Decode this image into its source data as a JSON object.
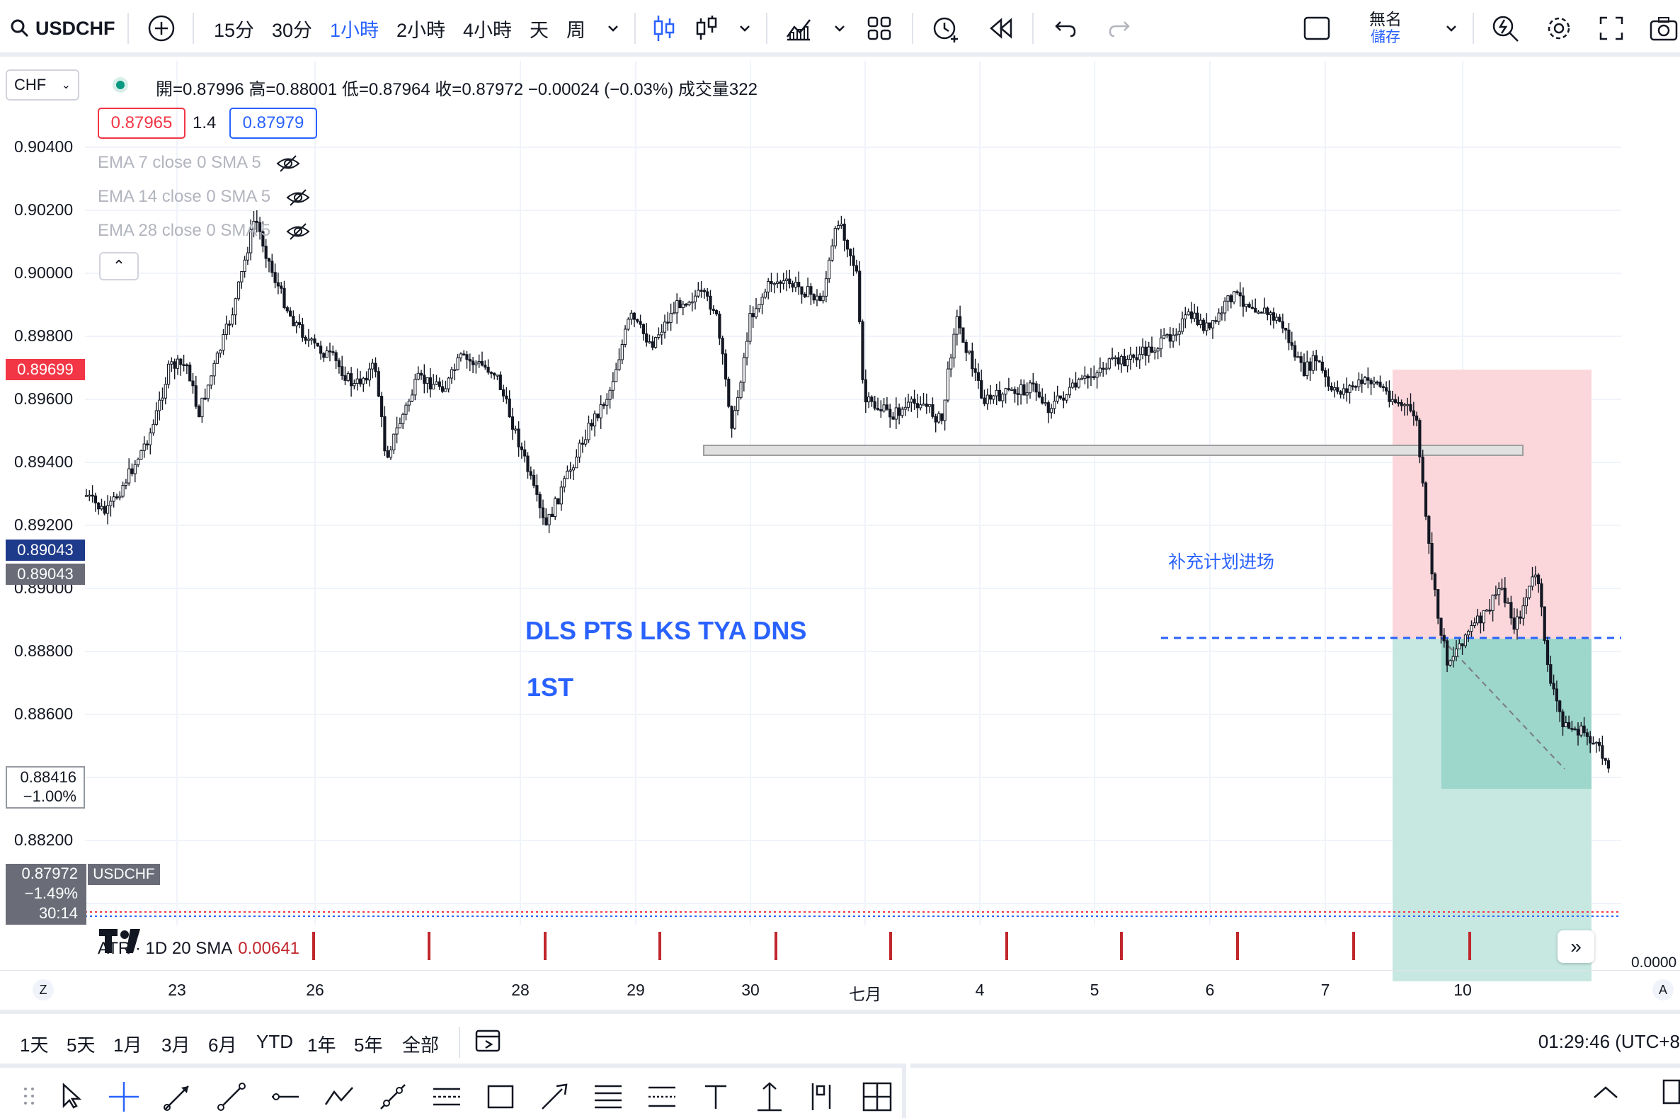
{
  "toolbar": {
    "symbol": "USDCHF",
    "intervals": [
      "15分",
      "30分",
      "1小時",
      "2小時",
      "4小時",
      "天",
      "周"
    ],
    "active_interval": "1小時",
    "layout_name": "無名",
    "layout_sub": "儲存"
  },
  "legend": {
    "currency": "CHF",
    "ohlc": "開=0.87996  高=0.88001  低=0.87964  收=0.87972  −0.00024 (−0.03%)  成交量322",
    "bid": "0.87965",
    "spread": "1.4",
    "ask": "0.87979",
    "indicators": [
      "EMA 7 close 0 SMA 5",
      "EMA 14 close 0 SMA 5",
      "EMA 28 close 0 SMA 5"
    ]
  },
  "price_axis": {
    "labels": [
      "0.90400",
      "0.90200",
      "0.90000",
      "0.89800",
      "0.89600",
      "0.89400",
      "0.89200",
      "0.89000",
      "0.88800",
      "0.88600",
      "0.88200"
    ],
    "tag_red": "0.89699",
    "tag_blue": "0.89043",
    "tag_gray": "0.89043",
    "box_price": "0.88416",
    "box_pct": "−1.00%",
    "last_price": "0.87972",
    "last_pct": "−1.49%",
    "countdown": "30:14",
    "symbol_tag": "USDCHF",
    "lower_value": "0.0000"
  },
  "annotations": {
    "text1": "DLS PTS LKS TYA DNS",
    "text2": "1ST",
    "plan_label": "补充计划进场"
  },
  "atr": {
    "label": "ATR · 1D 20 SMA",
    "value": "0.00641"
  },
  "time_axis": [
    "23",
    "26",
    "28",
    "29",
    "30",
    "七月",
    "4",
    "5",
    "6",
    "7",
    "10"
  ],
  "time_axis_left": "Z",
  "time_axis_right": "A",
  "ranges": [
    "1天",
    "5天",
    "1月",
    "3月",
    "6月",
    "YTD",
    "1年",
    "5年",
    "全部"
  ],
  "clock": "01:29:46 (UTC+8",
  "colors": {
    "accent": "#2962ff",
    "down": "#f23645",
    "stop_zone": "#fbd7db",
    "target_zone": "#c6e8e1",
    "target_dark": "#9dd6cb"
  },
  "drawing_tools": [
    "grip-icon",
    "cursor-icon",
    "crosshair-icon",
    "arrow-line-icon",
    "trend-line-icon",
    "horizontal-ray-icon",
    "path-icon",
    "polyline-icon",
    "pitchfork-icon",
    "rectangle-icon",
    "brush-icon",
    "fib-icon",
    "gann-icon",
    "text-icon",
    "long-position-icon",
    "forecast-icon",
    "measure-icon"
  ]
}
